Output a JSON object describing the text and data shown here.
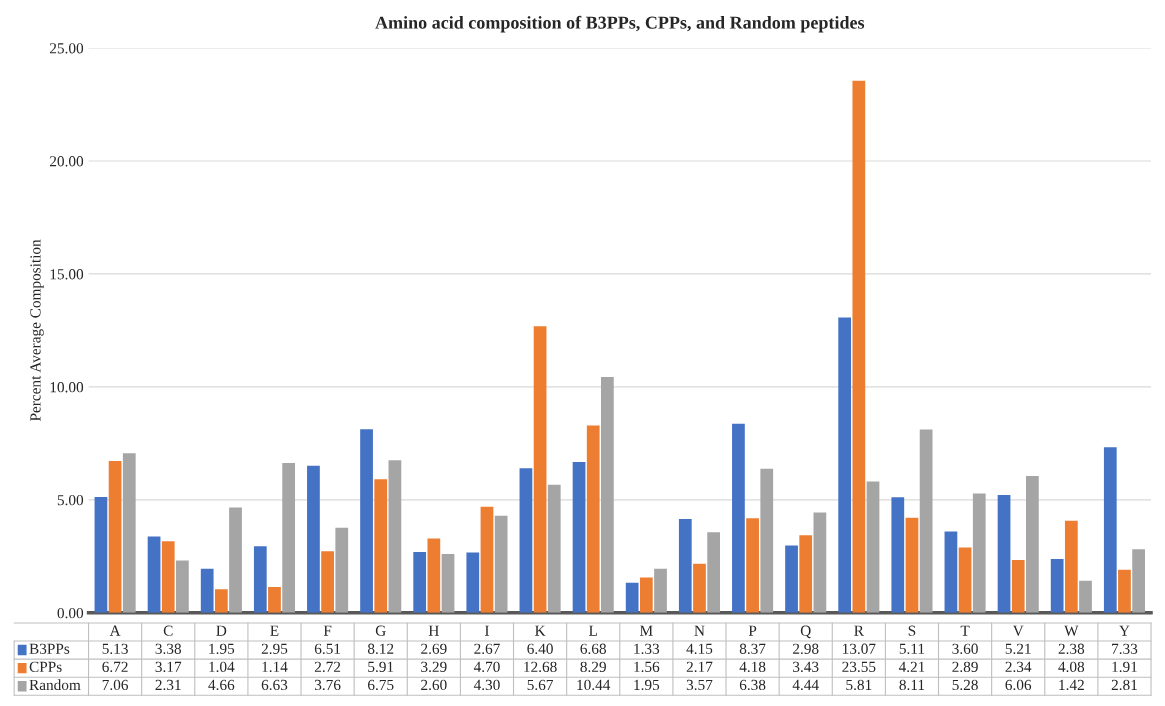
{
  "chart_data": {
    "type": "bar",
    "title": "Amino acid composition of B3PPs, CPPs, and Random peptides",
    "ylabel": "Percent Average Composition",
    "categories": [
      "A",
      "C",
      "D",
      "E",
      "F",
      "G",
      "H",
      "I",
      "K",
      "L",
      "M",
      "N",
      "P",
      "Q",
      "R",
      "S",
      "T",
      "V",
      "W",
      "Y"
    ],
    "series": [
      {
        "name": "B3PPs",
        "color": "#4472c4",
        "values": [
          5.13,
          3.38,
          1.95,
          2.95,
          6.51,
          8.12,
          2.69,
          2.67,
          6.4,
          6.68,
          1.33,
          4.15,
          8.37,
          2.98,
          13.07,
          5.11,
          3.6,
          5.21,
          2.38,
          7.33
        ],
        "value_labels": [
          "5.13",
          "3.38",
          "1.95",
          "2.95",
          "6.51",
          "8.12",
          "2.69",
          "2.67",
          "6.40",
          "6.68",
          "1.33",
          "4.15",
          "8.37",
          "2.98",
          "13.07",
          "5.11",
          "3.60",
          "5.21",
          "2.38",
          "7.33"
        ]
      },
      {
        "name": "CPPs",
        "color": "#ed7d31",
        "values": [
          6.72,
          3.17,
          1.04,
          1.14,
          2.72,
          5.91,
          3.29,
          4.7,
          12.68,
          8.29,
          1.56,
          2.17,
          4.18,
          3.43,
          23.55,
          4.21,
          2.89,
          2.34,
          4.08,
          1.91
        ],
        "value_labels": [
          "6.72",
          "3.17",
          "1.04",
          "1.14",
          "2.72",
          "5.91",
          "3.29",
          "4.70",
          "12.68",
          "8.29",
          "1.56",
          "2.17",
          "4.18",
          "3.43",
          "23.55",
          "4.21",
          "2.89",
          "2.34",
          "4.08",
          "1.91"
        ]
      },
      {
        "name": "Random",
        "color": "#a5a5a5",
        "values": [
          7.06,
          2.31,
          4.66,
          6.63,
          3.76,
          6.75,
          2.6,
          4.3,
          5.67,
          10.44,
          1.95,
          3.57,
          6.38,
          4.44,
          5.81,
          8.11,
          5.28,
          6.06,
          1.42,
          2.81
        ],
        "value_labels": [
          "7.06",
          "2.31",
          "4.66",
          "6.63",
          "3.76",
          "6.75",
          "2.60",
          "4.30",
          "5.67",
          "10.44",
          "1.95",
          "3.57",
          "6.38",
          "4.44",
          "5.81",
          "8.11",
          "5.28",
          "6.06",
          "1.42",
          "2.81"
        ]
      }
    ],
    "ylim": [
      0,
      25
    ],
    "yticks": [
      {
        "value": 0,
        "label": "0.00"
      },
      {
        "value": 5,
        "label": "5.00"
      },
      {
        "value": 10,
        "label": "10.00"
      },
      {
        "value": 15,
        "label": "15.00"
      },
      {
        "value": 20,
        "label": "20.00"
      },
      {
        "value": 25,
        "label": "25.00"
      }
    ],
    "grid": "y",
    "legend": "bottom"
  }
}
